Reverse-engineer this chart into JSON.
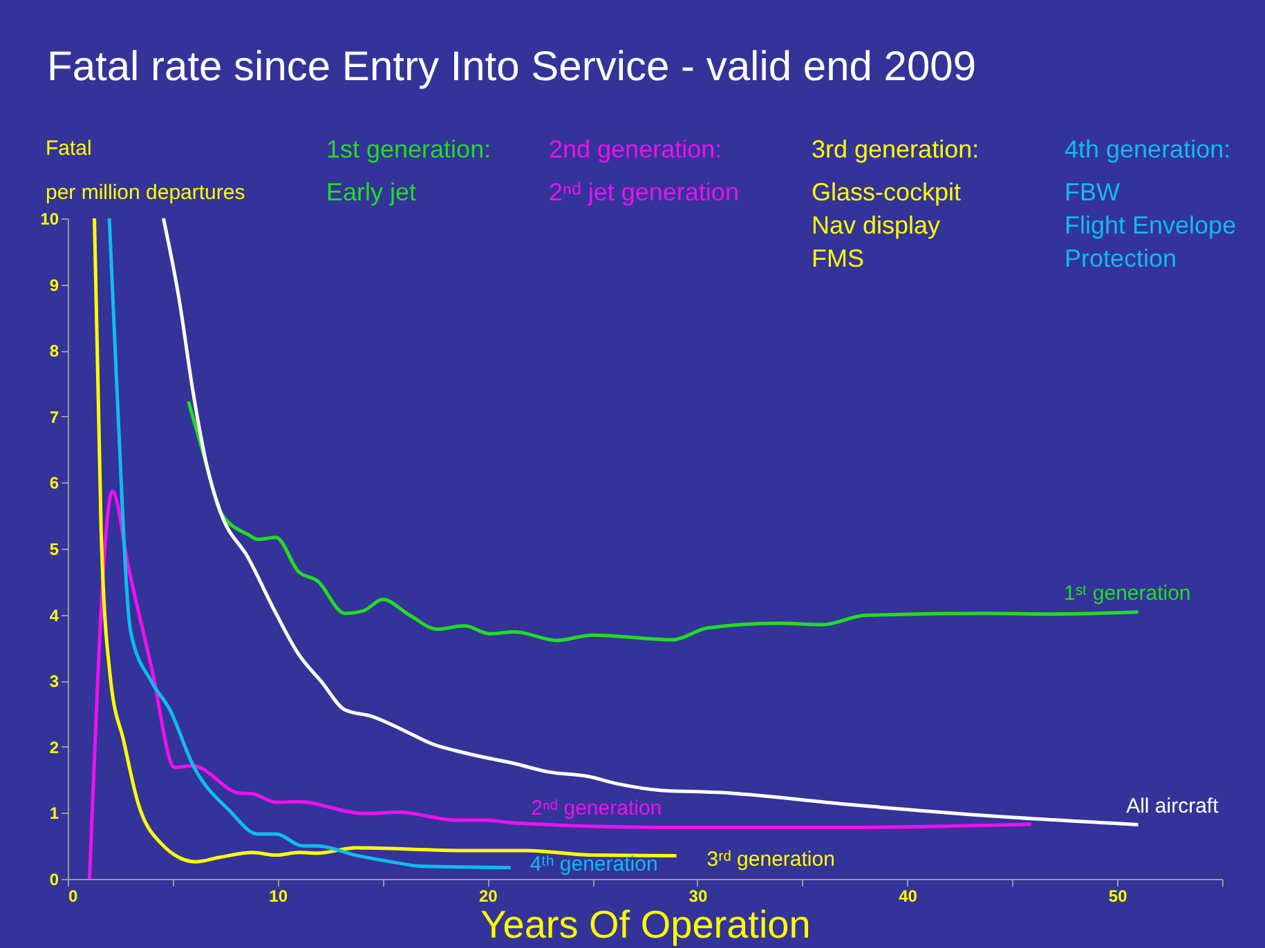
{
  "chart_data": {
    "type": "line",
    "title": "Fatal rate since Entry Into Service - valid end 2009",
    "ylabel": "Fatal per million departures",
    "xlabel": "Years Of Operation",
    "xlim": [
      0,
      55
    ],
    "xticks": [
      0,
      {
        "value": 5,
        "label": null
      },
      10,
      {
        "value": 15,
        "label": null
      },
      20,
      {
        "value": 25,
        "label": null
      },
      30,
      {
        "value": 35,
        "label": null
      },
      40,
      {
        "value": 45,
        "label": null
      },
      50,
      {
        "value": 55,
        "label": null
      }
    ],
    "ylim": [
      0,
      10
    ],
    "yticks": [
      0,
      1,
      2,
      3,
      4,
      5,
      6,
      7,
      8,
      9,
      10
    ],
    "grid": false,
    "legend": false,
    "annotations": [
      "1st generation:\nEarly jet",
      "2nd generation:\n2ⁿᵈ jet generation",
      "3rd generation:\nGlass-cockpit\nNav display\nFMS",
      "4th generation:\nFBW\nFlight Envelope\nProtection"
    ],
    "series": [
      {
        "name": "1ˢᵗ generation",
        "color": "#22dd22",
        "x": [
          5.75,
          6.63,
          7.28,
          8.6,
          9.06,
          9.92,
          11.0,
          11.9,
          13.2,
          14.1,
          15.0,
          16.3,
          17.6,
          18.9,
          20.1,
          21.3,
          23.3,
          25.0,
          28.8,
          30.5,
          33.8,
          36.0,
          38.0,
          43.7,
          47.0,
          51.0
        ],
        "values": [
          7.23,
          6.25,
          5.55,
          5.21,
          5.14,
          5.17,
          4.65,
          4.51,
          4.02,
          4.06,
          4.23,
          3.99,
          3.78,
          3.83,
          3.71,
          3.74,
          3.61,
          3.69,
          3.62,
          3.8,
          3.87,
          3.85,
          3.99,
          4.02,
          4.01,
          4.04
        ]
      },
      {
        "name": "2ⁿᵈ generation",
        "color": "#ee11ee",
        "x": [
          1.04,
          2.13,
          2.89,
          4.0,
          5.09,
          5.97,
          8.17,
          8.8,
          9.92,
          11.0,
          14.1,
          15.8,
          18.5,
          20.0,
          21.1,
          28.3,
          37.1,
          45.9
        ],
        "values": [
          0,
          5.87,
          4.72,
          3.19,
          1.69,
          1.71,
          1.3,
          1.29,
          1.16,
          1.17,
          0.99,
          1.01,
          0.89,
          0.89,
          0.85,
          0.78,
          0.78,
          0.83
        ]
      },
      {
        "name": "3ʳᵈ generation",
        "color": "#ffff00",
        "x": [
          1.27,
          1.59,
          2.03,
          2.68,
          3.34,
          4.44,
          6.08,
          7.28,
          8.8,
          9.92,
          11.0,
          11.9,
          13.7,
          18.9,
          21.8,
          25.0,
          29.0
        ],
        "values": [
          10,
          5.28,
          3.05,
          2.07,
          1.16,
          0.54,
          0.26,
          0.33,
          0.4,
          0.36,
          0.4,
          0.39,
          0.47,
          0.43,
          0.43,
          0.36,
          0.35
        ]
      },
      {
        "name": "4ᵗʰ generation",
        "color": "#11bbee",
        "x": [
          1.98,
          2.35,
          3.0,
          4.0,
          4.87,
          5.97,
          7.72,
          9.04,
          9.92,
          11.2,
          11.9,
          13.7,
          15.4,
          16.9,
          21.1
        ],
        "values": [
          10,
          7.37,
          3.74,
          2.98,
          2.56,
          1.72,
          1.03,
          0.68,
          0.68,
          0.5,
          0.5,
          0.36,
          0.26,
          0.19,
          0.17
        ]
      },
      {
        "name": "All aircraft",
        "color": "#ffffff",
        "x": [
          4.56,
          5.31,
          5.97,
          6.63,
          7.28,
          8.6,
          9.92,
          11.0,
          12.1,
          13.2,
          14.5,
          16.0,
          17.4,
          18.5,
          20.0,
          21.1,
          22.9,
          24.8,
          26.2,
          28.3,
          31.0,
          37.1,
          43.7,
          51.0
        ],
        "values": [
          10,
          8.77,
          7.37,
          6.25,
          5.55,
          4.86,
          4.02,
          3.4,
          2.98,
          2.56,
          2.46,
          2.25,
          2.04,
          1.94,
          1.83,
          1.76,
          1.62,
          1.55,
          1.44,
          1.34,
          1.31,
          1.13,
          0.96,
          0.82
        ]
      }
    ]
  }
}
